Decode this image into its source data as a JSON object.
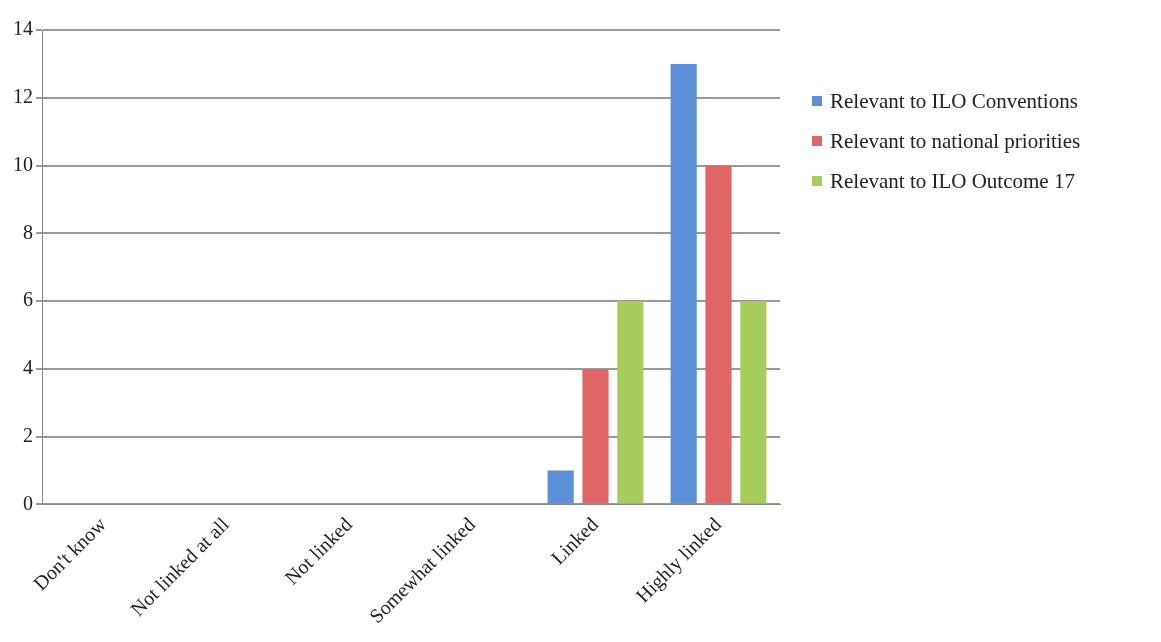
{
  "chart_data": {
    "type": "bar",
    "categories": [
      "Don't know",
      "Not linked at all",
      "Not linked",
      "Somewhat linked",
      "Linked",
      "Highly linked"
    ],
    "series": [
      {
        "name": "Relevant to ILO Conventions",
        "color": "#5b8fd8",
        "values": [
          0,
          0,
          0,
          0,
          1,
          13
        ]
      },
      {
        "name": "Relevant to national priorities",
        "color": "#e06666",
        "values": [
          0,
          0,
          0,
          0,
          4,
          10
        ]
      },
      {
        "name": "Relevant to ILO Outcome 17",
        "color": "#a8cc5c",
        "values": [
          0,
          0,
          0,
          0,
          6,
          6
        ]
      }
    ],
    "ylim": [
      0,
      14
    ],
    "yticks": [
      0,
      2,
      4,
      6,
      8,
      10,
      12,
      14
    ],
    "grid": "y",
    "legend": "right"
  }
}
